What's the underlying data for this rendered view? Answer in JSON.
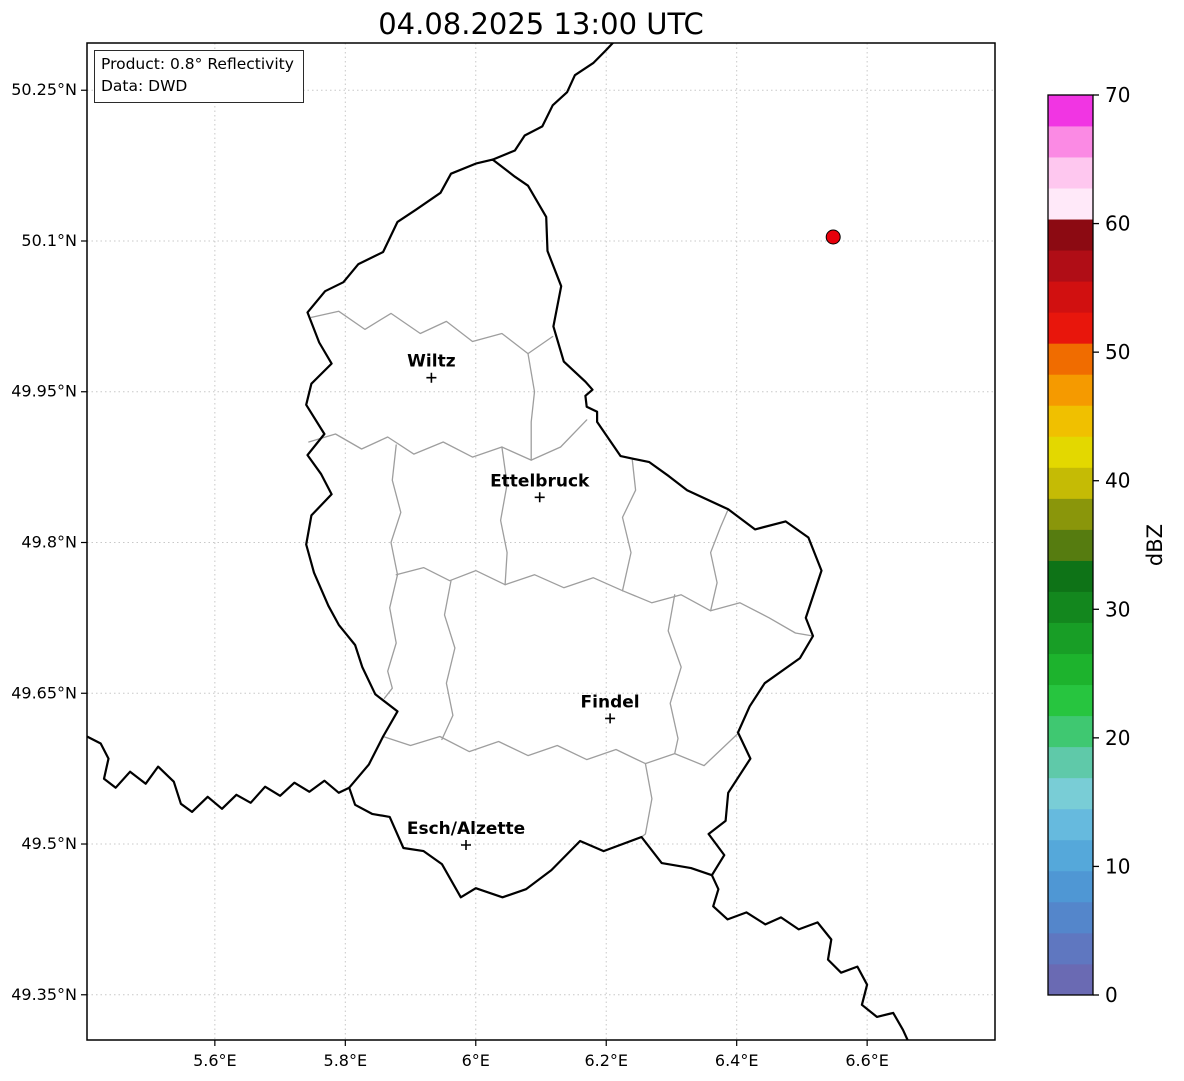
{
  "title": "04.08.2025 13:00 UTC",
  "info_box": {
    "line1": "Product: 0.8° Reflectivity",
    "line2": "Data: DWD"
  },
  "map": {
    "extent": {
      "lon_min": 5.404,
      "lon_max": 6.796,
      "lat_min": 49.305,
      "lat_max": 50.297
    },
    "x_ticks": [
      {
        "value": 5.6,
        "label": "5.6°E"
      },
      {
        "value": 5.8,
        "label": "5.8°E"
      },
      {
        "value": 6.0,
        "label": "6°E"
      },
      {
        "value": 6.2,
        "label": "6.2°E"
      },
      {
        "value": 6.4,
        "label": "6.4°E"
      },
      {
        "value": 6.6,
        "label": "6.6°E"
      }
    ],
    "y_ticks": [
      {
        "value": 50.25,
        "label": "50.25°N"
      },
      {
        "value": 50.1,
        "label": "50.1°N"
      },
      {
        "value": 49.95,
        "label": "49.95°N"
      },
      {
        "value": 49.8,
        "label": "49.8°N"
      },
      {
        "value": 49.65,
        "label": "49.65°N"
      },
      {
        "value": 49.5,
        "label": "49.5°N"
      },
      {
        "value": 49.35,
        "label": "49.35°N"
      }
    ],
    "cities": [
      {
        "name": "Wiltz",
        "lon": 5.932,
        "lat": 49.964
      },
      {
        "name": "Ettelbruck",
        "lon": 6.098,
        "lat": 49.845
      },
      {
        "name": "Findel",
        "lon": 6.206,
        "lat": 49.625
      },
      {
        "name": "Esch/Alzette",
        "lon": 5.985,
        "lat": 49.499
      }
    ],
    "radar_site": {
      "lon": 6.548,
      "lat": 50.104,
      "color": "#e8000b"
    },
    "country_borders": [
      [
        [
          6.026,
          50.181
        ],
        [
          6.06,
          50.164
        ],
        [
          6.08,
          50.155
        ],
        [
          6.108,
          50.124
        ],
        [
          6.11,
          50.09
        ],
        [
          6.131,
          50.055
        ],
        [
          6.119,
          50.015
        ],
        [
          6.135,
          49.98
        ],
        [
          6.168,
          49.96
        ],
        [
          6.179,
          49.952
        ],
        [
          6.168,
          49.946
        ],
        [
          6.17,
          49.935
        ],
        [
          6.186,
          49.93
        ],
        [
          6.186,
          49.92
        ],
        [
          6.222,
          49.886
        ],
        [
          6.266,
          49.88
        ],
        [
          6.296,
          49.866
        ],
        [
          6.324,
          49.852
        ],
        [
          6.387,
          49.833
        ],
        [
          6.428,
          49.813
        ],
        [
          6.475,
          49.821
        ],
        [
          6.51,
          49.805
        ],
        [
          6.53,
          49.772
        ],
        [
          6.506,
          49.725
        ],
        [
          6.517,
          49.707
        ],
        [
          6.497,
          49.685
        ],
        [
          6.443,
          49.66
        ],
        [
          6.42,
          49.637
        ],
        [
          6.402,
          49.611
        ],
        [
          6.421,
          49.585
        ],
        [
          6.387,
          49.551
        ],
        [
          6.383,
          49.523
        ],
        [
          6.357,
          49.51
        ],
        [
          6.381,
          49.489
        ],
        [
          6.362,
          49.469
        ],
        [
          6.33,
          49.476
        ],
        [
          6.285,
          49.481
        ],
        [
          6.254,
          49.507
        ],
        [
          6.196,
          49.493
        ],
        [
          6.16,
          49.503
        ],
        [
          6.116,
          49.474
        ],
        [
          6.077,
          49.455
        ],
        [
          6.041,
          49.447
        ],
        [
          6.0,
          49.456
        ],
        [
          5.977,
          49.447
        ],
        [
          5.948,
          49.48
        ],
        [
          5.92,
          49.493
        ],
        [
          5.889,
          49.496
        ],
        [
          5.868,
          49.527
        ],
        [
          5.841,
          49.53
        ],
        [
          5.815,
          49.539
        ],
        [
          5.806,
          49.556
        ],
        [
          5.836,
          49.579
        ],
        [
          5.858,
          49.607
        ],
        [
          5.88,
          49.632
        ],
        [
          5.846,
          49.649
        ],
        [
          5.826,
          49.676
        ],
        [
          5.815,
          49.698
        ],
        [
          5.79,
          49.718
        ],
        [
          5.774,
          49.737
        ],
        [
          5.752,
          49.77
        ],
        [
          5.74,
          49.798
        ],
        [
          5.748,
          49.827
        ],
        [
          5.779,
          49.848
        ],
        [
          5.763,
          49.868
        ],
        [
          5.742,
          49.887
        ],
        [
          5.768,
          49.908
        ],
        [
          5.74,
          49.937
        ],
        [
          5.748,
          49.958
        ],
        [
          5.779,
          49.978
        ],
        [
          5.76,
          49.999
        ],
        [
          5.742,
          50.029
        ],
        [
          5.769,
          50.05
        ],
        [
          5.797,
          50.059
        ],
        [
          5.82,
          50.077
        ],
        [
          5.858,
          50.089
        ],
        [
          5.88,
          50.119
        ],
        [
          5.908,
          50.131
        ],
        [
          5.946,
          50.148
        ],
        [
          5.962,
          50.167
        ],
        [
          6.0,
          50.177
        ],
        [
          6.026,
          50.181
        ]
      ],
      [
        [
          6.026,
          50.181
        ],
        [
          6.06,
          50.19
        ],
        [
          6.075,
          50.205
        ],
        [
          6.102,
          50.214
        ],
        [
          6.118,
          50.235
        ],
        [
          6.14,
          50.248
        ],
        [
          6.152,
          50.265
        ],
        [
          6.18,
          50.277
        ],
        [
          6.2,
          50.29
        ],
        [
          6.21,
          50.297
        ]
      ],
      [
        [
          5.404,
          49.607
        ],
        [
          5.425,
          49.6
        ],
        [
          5.437,
          49.585
        ],
        [
          5.43,
          49.565
        ],
        [
          5.448,
          49.556
        ],
        [
          5.47,
          49.572
        ],
        [
          5.494,
          49.56
        ],
        [
          5.513,
          49.577
        ],
        [
          5.537,
          49.562
        ],
        [
          5.548,
          49.54
        ],
        [
          5.565,
          49.532
        ],
        [
          5.589,
          49.547
        ],
        [
          5.611,
          49.535
        ],
        [
          5.633,
          49.549
        ],
        [
          5.655,
          49.541
        ],
        [
          5.677,
          49.557
        ],
        [
          5.7,
          49.548
        ],
        [
          5.722,
          49.561
        ],
        [
          5.745,
          49.552
        ],
        [
          5.768,
          49.563
        ],
        [
          5.79,
          49.551
        ],
        [
          5.806,
          49.556
        ]
      ],
      [
        [
          6.362,
          49.469
        ],
        [
          6.372,
          49.455
        ],
        [
          6.364,
          49.438
        ],
        [
          6.386,
          49.425
        ],
        [
          6.415,
          49.432
        ],
        [
          6.444,
          49.42
        ],
        [
          6.468,
          49.427
        ],
        [
          6.495,
          49.415
        ],
        [
          6.524,
          49.422
        ],
        [
          6.545,
          49.405
        ],
        [
          6.54,
          49.385
        ],
        [
          6.56,
          49.372
        ],
        [
          6.585,
          49.378
        ],
        [
          6.6,
          49.36
        ],
        [
          6.592,
          49.34
        ],
        [
          6.615,
          49.328
        ],
        [
          6.64,
          49.332
        ],
        [
          6.655,
          49.315
        ],
        [
          6.662,
          49.305
        ]
      ]
    ],
    "district_borders": [
      [
        [
          5.748,
          50.024
        ],
        [
          5.79,
          50.03
        ],
        [
          5.83,
          50.012
        ],
        [
          5.87,
          50.028
        ],
        [
          5.915,
          50.008
        ],
        [
          5.955,
          50.02
        ],
        [
          5.995,
          50.0
        ],
        [
          6.04,
          50.008
        ],
        [
          6.08,
          49.988
        ],
        [
          6.118,
          50.005
        ]
      ],
      [
        [
          5.744,
          49.9
        ],
        [
          5.785,
          49.908
        ],
        [
          5.825,
          49.893
        ],
        [
          5.865,
          49.905
        ],
        [
          5.905,
          49.888
        ],
        [
          5.95,
          49.9
        ],
        [
          5.995,
          49.885
        ],
        [
          6.04,
          49.895
        ],
        [
          6.085,
          49.882
        ],
        [
          6.13,
          49.895
        ],
        [
          6.17,
          49.922
        ]
      ],
      [
        [
          5.878,
          49.897
        ],
        [
          5.872,
          49.862
        ],
        [
          5.885,
          49.83
        ],
        [
          5.87,
          49.8
        ],
        [
          5.88,
          49.768
        ],
        [
          5.868,
          49.735
        ],
        [
          5.878,
          49.7
        ],
        [
          5.865,
          49.672
        ],
        [
          5.872,
          49.655
        ],
        [
          5.86,
          49.645
        ]
      ],
      [
        [
          5.878,
          49.768
        ],
        [
          5.92,
          49.775
        ],
        [
          5.96,
          49.762
        ],
        [
          6.0,
          49.772
        ],
        [
          6.045,
          49.758
        ],
        [
          6.09,
          49.768
        ],
        [
          6.135,
          49.755
        ],
        [
          6.18,
          49.765
        ],
        [
          6.225,
          49.752
        ]
      ],
      [
        [
          6.225,
          49.752
        ],
        [
          6.238,
          49.79
        ],
        [
          6.225,
          49.825
        ],
        [
          6.245,
          49.852
        ],
        [
          6.24,
          49.882
        ]
      ],
      [
        [
          6.225,
          49.752
        ],
        [
          6.27,
          49.74
        ],
        [
          6.315,
          49.748
        ],
        [
          6.36,
          49.732
        ],
        [
          6.405,
          49.74
        ],
        [
          6.45,
          49.725
        ],
        [
          6.49,
          49.71
        ],
        [
          6.517,
          49.707
        ]
      ],
      [
        [
          5.858,
          49.607
        ],
        [
          5.9,
          49.598
        ],
        [
          5.945,
          49.607
        ],
        [
          5.99,
          49.592
        ],
        [
          6.035,
          49.602
        ],
        [
          6.08,
          49.588
        ],
        [
          6.125,
          49.598
        ],
        [
          6.17,
          49.584
        ],
        [
          6.215,
          49.594
        ],
        [
          6.26,
          49.58
        ],
        [
          6.305,
          49.59
        ],
        [
          6.35,
          49.578
        ],
        [
          6.402,
          49.61
        ]
      ],
      [
        [
          6.305,
          49.748
        ],
        [
          6.295,
          49.712
        ],
        [
          6.315,
          49.676
        ],
        [
          6.298,
          49.64
        ],
        [
          6.31,
          49.605
        ],
        [
          6.305,
          49.59
        ]
      ],
      [
        [
          5.962,
          49.762
        ],
        [
          5.952,
          49.728
        ],
        [
          5.968,
          49.695
        ],
        [
          5.955,
          49.66
        ],
        [
          5.965,
          49.628
        ],
        [
          5.948,
          49.604
        ]
      ],
      [
        [
          6.04,
          49.895
        ],
        [
          6.048,
          49.858
        ],
        [
          6.038,
          49.822
        ],
        [
          6.048,
          49.79
        ],
        [
          6.045,
          49.758
        ]
      ],
      [
        [
          6.36,
          49.732
        ],
        [
          6.37,
          49.76
        ],
        [
          6.36,
          49.79
        ],
        [
          6.375,
          49.815
        ],
        [
          6.387,
          49.833
        ]
      ],
      [
        [
          6.08,
          49.988
        ],
        [
          6.09,
          49.95
        ],
        [
          6.085,
          49.92
        ],
        [
          6.085,
          49.882
        ]
      ],
      [
        [
          6.26,
          49.58
        ],
        [
          6.27,
          49.545
        ],
        [
          6.26,
          49.51
        ],
        [
          6.254,
          49.507
        ]
      ]
    ],
    "style": {
      "country_border_color": "#000000",
      "district_border_color": "#9e9e9e",
      "gridline_color": "#c8c8c8"
    }
  },
  "colorbar": {
    "label": "dBZ",
    "min": 0,
    "max": 70,
    "ticks": [
      0,
      10,
      20,
      30,
      40,
      50,
      60,
      70
    ],
    "colors_bottom_to_top": [
      "#6a6ab3",
      "#5f77c0",
      "#5486cb",
      "#4f97d4",
      "#55a8da",
      "#66bade",
      "#79cdd6",
      "#5fc9a9",
      "#3fc871",
      "#27c53f",
      "#1db32d",
      "#189e26",
      "#13871e",
      "#0e7317",
      "#567c10",
      "#8a960b",
      "#c5bb05",
      "#e3d800",
      "#f0c000",
      "#f59a00",
      "#f06c00",
      "#e8160c",
      "#d11010",
      "#b00d16",
      "#8c0a12",
      "#ffe9f9",
      "#fec7ef",
      "#fb8ae4",
      "#f135e3"
    ]
  }
}
